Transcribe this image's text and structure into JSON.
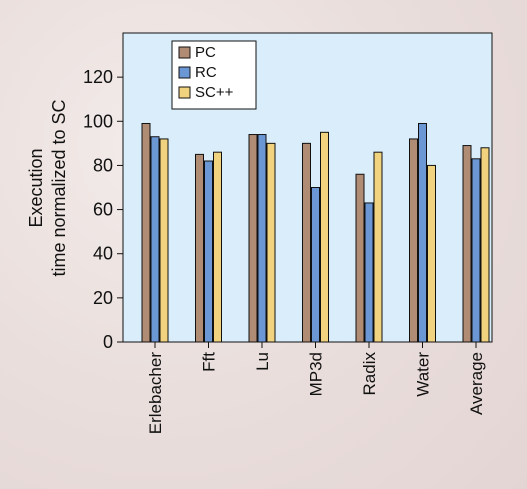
{
  "chart_data": {
    "type": "bar",
    "title": "",
    "xlabel": "",
    "ylabel": "Execution time normalized to SC",
    "ylabel_lines": [
      "Execution",
      "time normalized to SC"
    ],
    "ylim": [
      0,
      140
    ],
    "yticks": [
      0,
      20,
      40,
      60,
      80,
      100,
      120
    ],
    "grid": false,
    "legend_position": "top-left",
    "categories": [
      "Erlebacher",
      "Fft",
      "Lu",
      "MP3d",
      "Radix",
      "Water",
      "Average"
    ],
    "series": [
      {
        "name": "PC",
        "color": "#b08c74",
        "values": [
          99,
          85,
          94,
          90,
          76,
          92,
          89
        ]
      },
      {
        "name": "RC",
        "color": "#6b98d4",
        "values": [
          93,
          82,
          94,
          70,
          63,
          99,
          83
        ]
      },
      {
        "name": "SC++",
        "color": "#f1d27e",
        "values": [
          92,
          86,
          90,
          95,
          86,
          80,
          88
        ]
      }
    ],
    "colors": {
      "plot_background": "#d9eefa",
      "axis": "#111111"
    }
  }
}
